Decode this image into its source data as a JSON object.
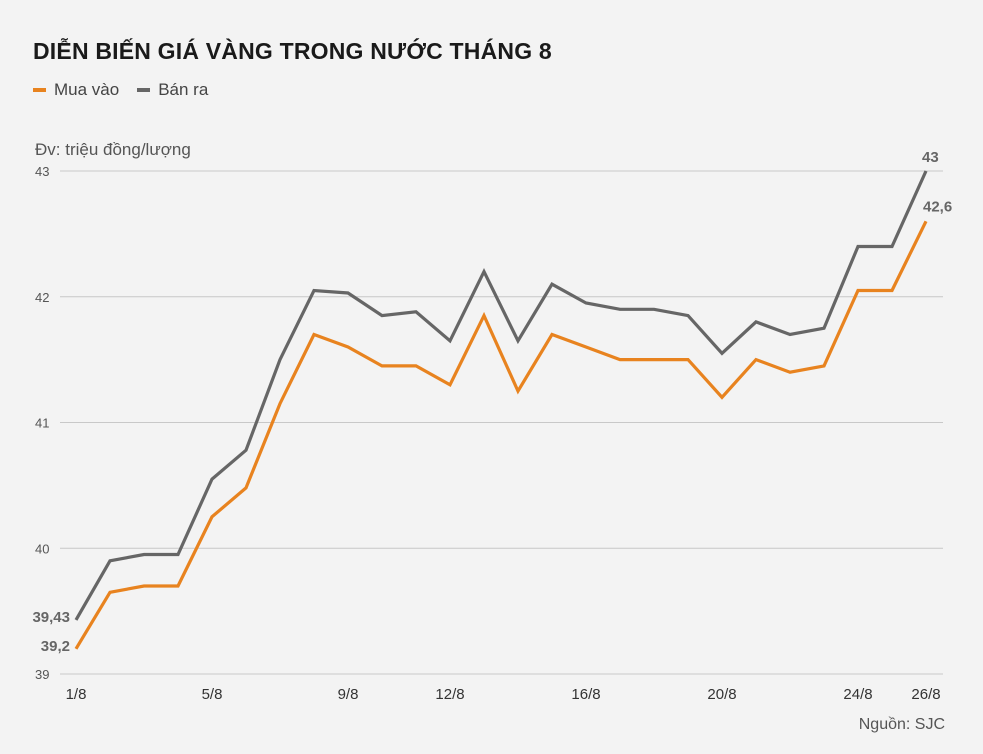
{
  "chart_data": {
    "type": "line",
    "title": "DIỄN BIẾN GIÁ VÀNG TRONG NƯỚC THÁNG 8",
    "unit_label": "Đv: triệu đồng/lượng",
    "source": "Nguồn: SJC",
    "ylim": [
      39,
      43
    ],
    "yticks": [
      "39",
      "40",
      "41",
      "42",
      "43"
    ],
    "ytick_values": [
      39,
      40,
      41,
      42,
      43
    ],
    "x_tick_labels": [
      {
        "index": 0,
        "label": "1/8"
      },
      {
        "index": 4,
        "label": "5/8"
      },
      {
        "index": 8,
        "label": "9/8"
      },
      {
        "index": 11,
        "label": "12/8"
      },
      {
        "index": 15,
        "label": "16/8"
      },
      {
        "index": 19,
        "label": "20/8"
      },
      {
        "index": 23,
        "label": "24/8"
      },
      {
        "index": 25,
        "label": "26/8"
      }
    ],
    "x": [
      "1/8",
      "2/8",
      "3/8",
      "4/8",
      "5/8",
      "6/8",
      "7/8",
      "8/8",
      "9/8",
      "10/8",
      "11/8",
      "12/8",
      "13/8",
      "14/8",
      "15/8",
      "16/8",
      "17/8",
      "18/8",
      "19/8",
      "20/8",
      "21/8",
      "22/8",
      "23/8",
      "24/8",
      "25/8",
      "26/8"
    ],
    "grid": true,
    "legend_position": "top-left",
    "series": [
      {
        "name": "Mua vào",
        "color": "#e8831f",
        "values": [
          39.2,
          39.65,
          39.7,
          39.7,
          40.25,
          40.48,
          41.15,
          41.7,
          41.6,
          41.45,
          41.45,
          41.3,
          41.85,
          41.25,
          41.7,
          41.6,
          41.5,
          41.5,
          41.5,
          41.2,
          41.5,
          41.4,
          41.45,
          42.05,
          42.05,
          42.6
        ],
        "first_label": "39,2",
        "last_label": "42,6"
      },
      {
        "name": "Bán ra",
        "color": "#666666",
        "values": [
          39.43,
          39.9,
          39.95,
          39.95,
          40.55,
          40.78,
          41.5,
          42.05,
          42.03,
          41.85,
          41.88,
          41.65,
          42.2,
          41.65,
          42.1,
          41.95,
          41.9,
          41.9,
          41.85,
          41.55,
          41.8,
          41.7,
          41.75,
          42.4,
          42.4,
          43
        ],
        "first_label": "39,43",
        "last_label": "43"
      }
    ]
  }
}
